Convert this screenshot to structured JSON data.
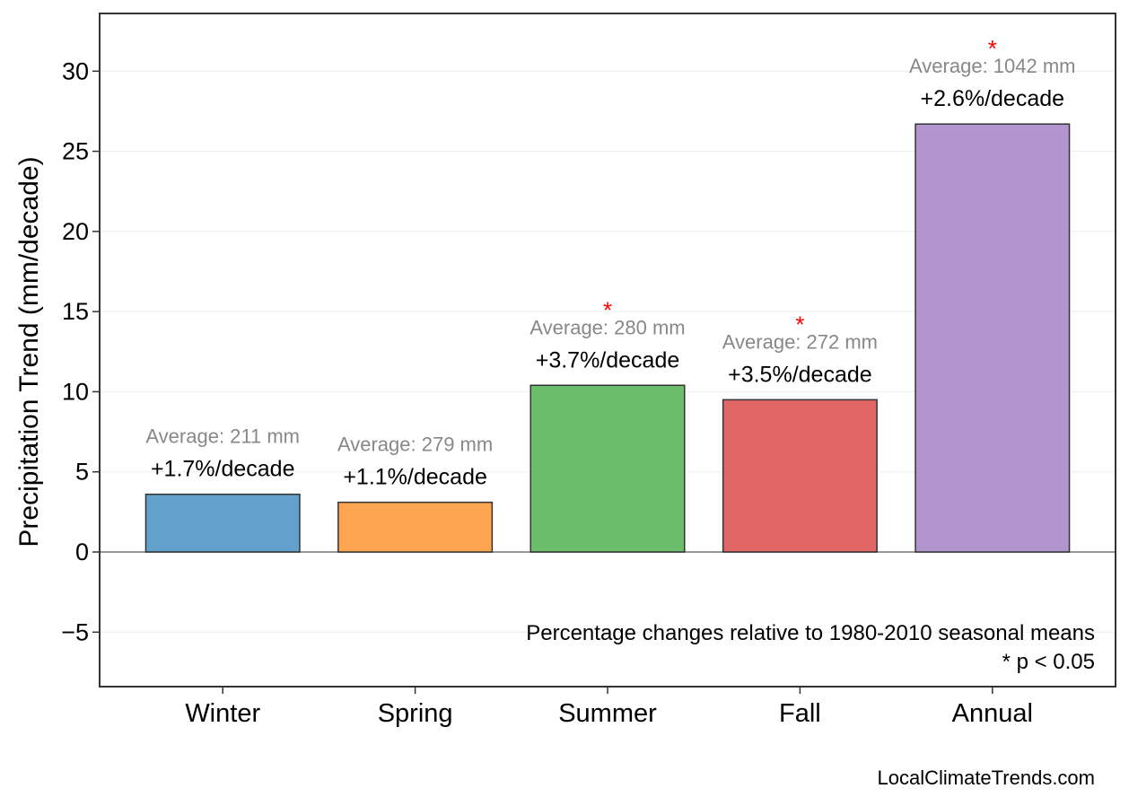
{
  "chart_data": {
    "type": "bar",
    "title": "",
    "xlabel": "",
    "ylabel": "Precipitation Trend (mm/decade)",
    "ylim": [
      -8.4,
      33.6
    ],
    "yticks": [
      -5,
      0,
      5,
      10,
      15,
      20,
      25,
      30
    ],
    "ytick_labels": [
      "−5",
      "0",
      "5",
      "10",
      "15",
      "20",
      "25",
      "30"
    ],
    "grid": true,
    "categories": [
      "Winter",
      "Spring",
      "Summer",
      "Fall",
      "Annual"
    ],
    "values": [
      3.6,
      3.1,
      10.4,
      9.5,
      26.7
    ],
    "colors": [
      "#62a1cc",
      "#fea552",
      "#6bbd6b",
      "#e06666",
      "#b294cf"
    ],
    "percent_labels": [
      "+1.7%/decade",
      "+1.1%/decade",
      "+3.7%/decade",
      "+3.5%/decade",
      "+2.6%/decade"
    ],
    "average_labels": [
      "Average: 211 mm",
      "Average: 279 mm",
      "Average: 280 mm",
      "Average: 272 mm",
      "Average: 1042 mm"
    ],
    "significant": [
      false,
      false,
      true,
      true,
      true
    ],
    "significance_marker": "*",
    "significance_color": "#ff0000",
    "annotation": [
      "Percentage changes relative to 1980-2010 seasonal means",
      "* p < 0.05"
    ],
    "source": "LocalClimateTrends.com"
  }
}
